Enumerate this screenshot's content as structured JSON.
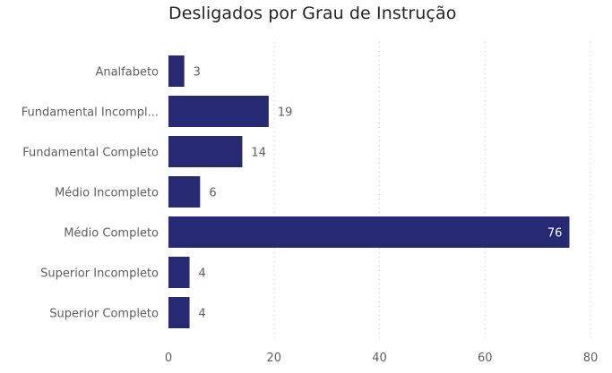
{
  "chart_data": {
    "type": "bar",
    "orientation": "horizontal",
    "title": "Desligados por Grau de Instrução",
    "categories": [
      "Analfabeto",
      "Fundamental Incompl...",
      "Fundamental Completo",
      "Médio Incompleto",
      "Médio Completo",
      "Superior Incompleto",
      "Superior Completo"
    ],
    "values": [
      3,
      19,
      14,
      6,
      76,
      4,
      4
    ],
    "xlim": [
      0,
      80
    ],
    "xticks": [
      0,
      20,
      40,
      60,
      80
    ],
    "xlabel": "",
    "ylabel": "",
    "grid": "vertical dotted",
    "bar_color": "#262A72",
    "label_color": "#605E5C",
    "inside_label_color": "#FFFFFF"
  }
}
